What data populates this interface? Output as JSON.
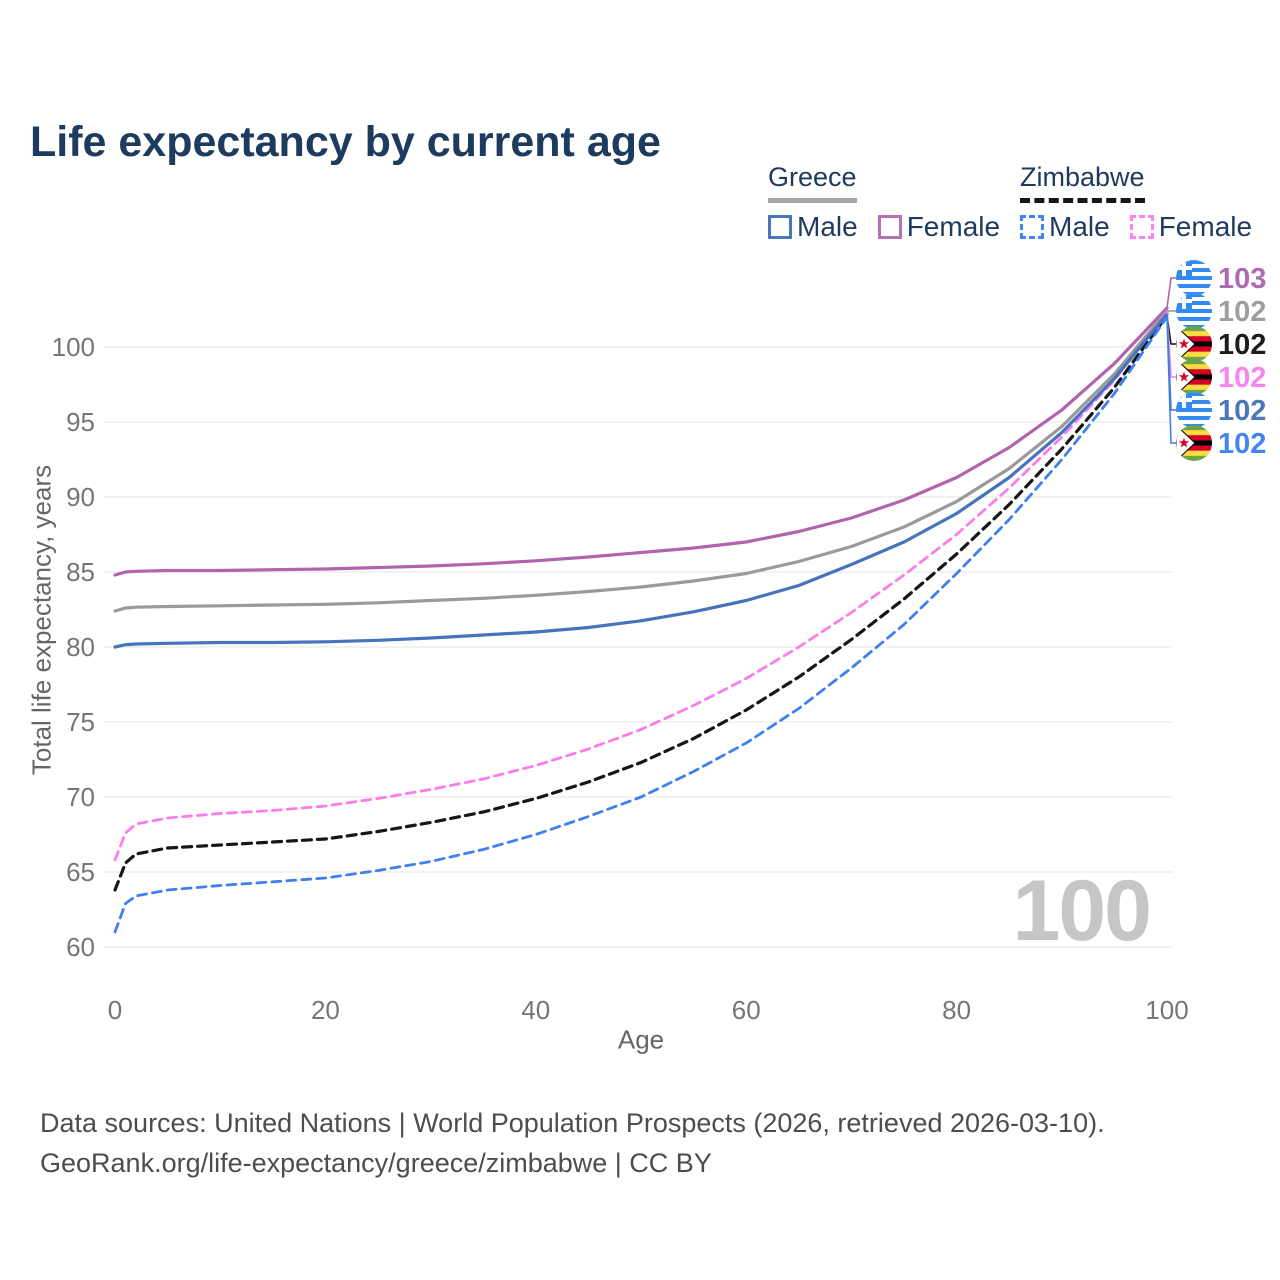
{
  "title": "Life expectancy by current age",
  "watermark": "100",
  "legend": {
    "groups": [
      {
        "country": "Greece",
        "items": [
          {
            "label": "Male"
          },
          {
            "label": "Female"
          }
        ]
      },
      {
        "country": "Zimbabwe",
        "items": [
          {
            "label": "Male"
          },
          {
            "label": "Female"
          }
        ]
      }
    ]
  },
  "footer": {
    "line1": "Data sources: United Nations | World Population Prospects (2026, retrieved 2026-03-10).",
    "line2": "GeoRank.org/life-expectancy/greece/zimbabwe | CC BY"
  },
  "chart_data": {
    "type": "line",
    "title": "Life expectancy by current age",
    "xlabel": "Age",
    "ylabel": "Total life expectancy, years",
    "xlim": [
      0,
      100
    ],
    "ylim": [
      60,
      104
    ],
    "x_ticks": [
      0,
      20,
      40,
      60,
      80,
      100
    ],
    "y_ticks": [
      60,
      65,
      70,
      75,
      80,
      85,
      90,
      95,
      100
    ],
    "grid": true,
    "legend_position": "top-right",
    "x": [
      0,
      1,
      2,
      5,
      10,
      15,
      20,
      25,
      30,
      35,
      40,
      45,
      50,
      55,
      60,
      65,
      70,
      75,
      80,
      85,
      90,
      95,
      100
    ],
    "series": [
      {
        "id": "greece-female",
        "name": "Greece Female",
        "country": "Greece",
        "sex": "Female",
        "flag": "greece",
        "color": "#b164ae",
        "dashed": false,
        "width": 3.2,
        "end_label": "103",
        "end_label_color": "#ae6bb2",
        "values": [
          84.8,
          85.0,
          85.05,
          85.1,
          85.1,
          85.15,
          85.2,
          85.3,
          85.4,
          85.55,
          85.75,
          86.0,
          86.3,
          86.6,
          87.0,
          87.7,
          88.6,
          89.8,
          91.3,
          93.3,
          95.8,
          98.9,
          102.6
        ]
      },
      {
        "id": "greece",
        "name": "Greece (both sexes)",
        "country": "Greece",
        "sex": "Both",
        "flag": "greece",
        "color": "#9a9a9a",
        "dashed": false,
        "width": 3.2,
        "end_label": "102",
        "end_label_color": "#9e9e9e",
        "values": [
          82.4,
          82.6,
          82.65,
          82.7,
          82.75,
          82.8,
          82.85,
          82.95,
          83.1,
          83.25,
          83.45,
          83.7,
          84.0,
          84.4,
          84.9,
          85.7,
          86.7,
          88.0,
          89.7,
          91.9,
          94.7,
          98.2,
          102.4
        ]
      },
      {
        "id": "zimbabwe",
        "name": "Zimbabwe (both sexes)",
        "country": "Zimbabwe",
        "sex": "Both",
        "flag": "zimbabwe",
        "color": "#161616",
        "dashed": true,
        "width": 3.2,
        "end_label": "102",
        "end_label_color": "#1c1c1c",
        "values": [
          63.8,
          65.6,
          66.2,
          66.6,
          66.8,
          67.0,
          67.2,
          67.7,
          68.3,
          69.0,
          69.9,
          71.0,
          72.3,
          73.9,
          75.8,
          78.0,
          80.5,
          83.2,
          86.2,
          89.5,
          93.2,
          97.3,
          102.1
        ]
      },
      {
        "id": "zimbabwe-female",
        "name": "Zimbabwe Female",
        "country": "Zimbabwe",
        "sex": "Female",
        "flag": "zimbabwe",
        "color": "#fb7ee8",
        "dashed": true,
        "width": 2.8,
        "end_label": "102",
        "end_label_color": "#fb83ee",
        "values": [
          65.8,
          67.6,
          68.2,
          68.6,
          68.9,
          69.1,
          69.4,
          69.9,
          70.5,
          71.2,
          72.1,
          73.2,
          74.5,
          76.1,
          77.9,
          80.0,
          82.3,
          84.8,
          87.5,
          90.6,
          94.0,
          97.8,
          102.3
        ]
      },
      {
        "id": "greece-male",
        "name": "Greece Male",
        "country": "Greece",
        "sex": "Male",
        "flag": "greece",
        "color": "#4673bd",
        "dashed": false,
        "width": 3.2,
        "end_label": "102",
        "end_label_color": "#4c78bb",
        "values": [
          80.0,
          80.15,
          80.2,
          80.25,
          80.3,
          80.3,
          80.35,
          80.45,
          80.6,
          80.8,
          81.0,
          81.3,
          81.75,
          82.35,
          83.1,
          84.1,
          85.5,
          87.0,
          88.9,
          91.3,
          94.3,
          97.9,
          102.2
        ]
      },
      {
        "id": "zimbabwe-male",
        "name": "Zimbabwe Male",
        "country": "Zimbabwe",
        "sex": "Male",
        "flag": "zimbabwe",
        "color": "#3f80f0",
        "dashed": true,
        "width": 2.8,
        "end_label": "102",
        "end_label_color": "#4285f4",
        "values": [
          61.0,
          62.9,
          63.4,
          63.8,
          64.1,
          64.35,
          64.6,
          65.1,
          65.7,
          66.5,
          67.5,
          68.7,
          70.0,
          71.7,
          73.6,
          75.9,
          78.6,
          81.5,
          84.9,
          88.5,
          92.5,
          96.9,
          102.0
        ]
      }
    ]
  }
}
